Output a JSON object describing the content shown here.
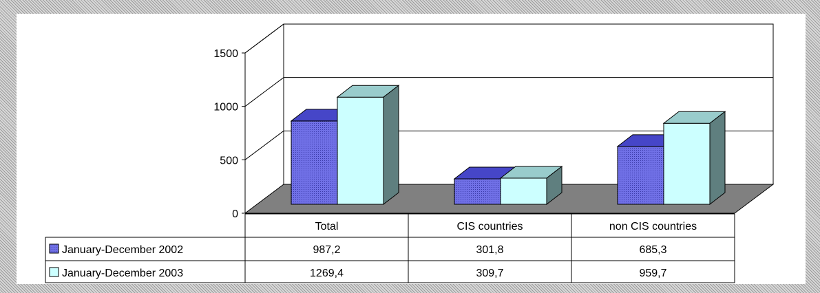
{
  "chart_data": {
    "type": "bar",
    "title": "",
    "xlabel": "",
    "ylabel": "",
    "categories": [
      "Total",
      "CIS countries",
      "non CIS countries"
    ],
    "series": [
      {
        "name": "January-December 2002",
        "values": [
          987.2,
          301.8,
          685.3
        ],
        "labels": [
          "987,2",
          "301,8",
          "685,3"
        ],
        "color": "#5b5bd6",
        "side_color": "#2a2a8a"
      },
      {
        "name": "January-December 2003",
        "values": [
          1269.4,
          309.7,
          959.7
        ],
        "labels": [
          "1269,4",
          "309,7",
          "959,7"
        ],
        "color": "#ccffff",
        "side_color": "#5f7f7f"
      }
    ],
    "ylim": [
      0,
      1500
    ],
    "y_ticks": [
      0,
      500,
      1000,
      1500
    ],
    "grid": true,
    "floor_color": "#808080",
    "legend": "data-table"
  }
}
